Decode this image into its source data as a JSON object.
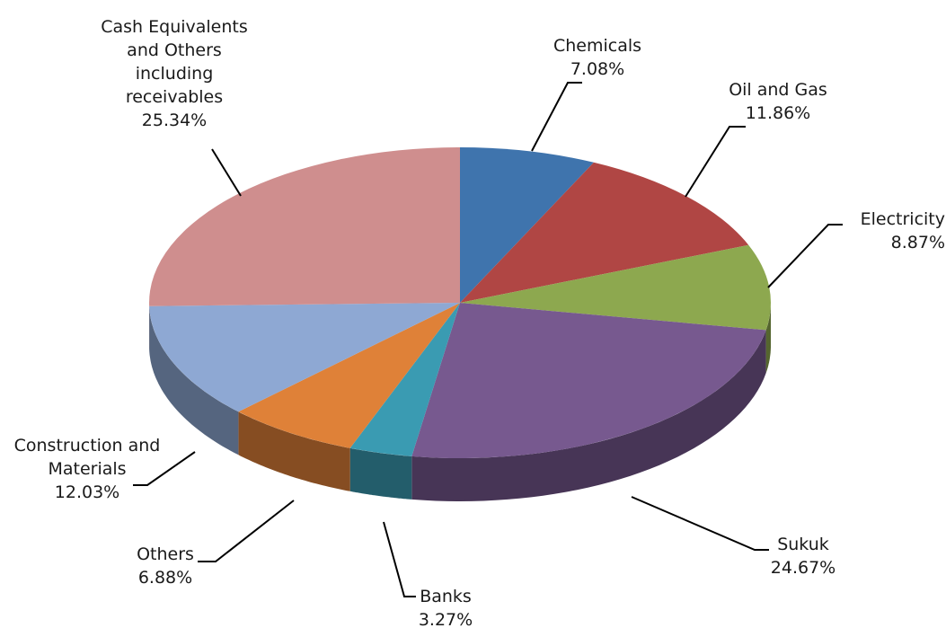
{
  "chart_data": {
    "type": "pie",
    "title": "",
    "style": "3d-exploded-none",
    "slices": [
      {
        "label": [
          "Chemicals"
        ],
        "value": 7.08,
        "value_label": "7.08%",
        "color": "#3f74ad"
      },
      {
        "label": [
          "Oil and Gas"
        ],
        "value": 11.86,
        "value_label": "11.86%",
        "color": "#b04644"
      },
      {
        "label": [
          "Electricity"
        ],
        "value": 8.87,
        "value_label": "8.87%",
        "color": "#8da84f"
      },
      {
        "label": [
          "Sukuk"
        ],
        "value": 24.67,
        "value_label": "24.67%",
        "color": "#77598f"
      },
      {
        "label": [
          "Banks"
        ],
        "value": 3.27,
        "value_label": "3.27%",
        "color": "#3a9bb2"
      },
      {
        "label": [
          "Others"
        ],
        "value": 6.88,
        "value_label": "6.88%",
        "color": "#df8138"
      },
      {
        "label": [
          "Construction and",
          "Materials"
        ],
        "value": 12.03,
        "value_label": "12.03%",
        "color": "#8ea8d3"
      },
      {
        "label": [
          "Cash Equivalents",
          "and Others",
          "including",
          "receivables"
        ],
        "value": 25.34,
        "value_label": "25.34%",
        "color": "#cf8e8e"
      }
    ]
  }
}
